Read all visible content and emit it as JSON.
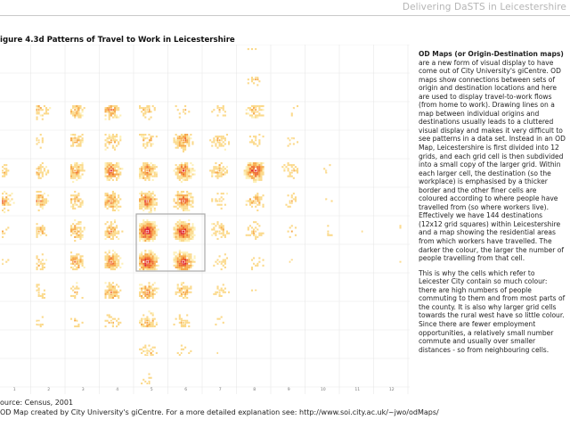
{
  "header": {
    "title": "Delivering DaSTS in Leicestershire"
  },
  "figure": {
    "title": "igure 4.3d  Patterns of Travel to Work in Leicestershire",
    "column_labels": [
      "1",
      "2",
      "3",
      "4",
      "5",
      "6",
      "7",
      "8",
      "9",
      "10",
      "11",
      "12"
    ]
  },
  "sidebar": {
    "heading": "OD Maps (or Origin-Destination maps)",
    "paragraph1_rest": " are a new form of visual display to have come out of City University's giCentre. OD maps show connections between sets of origin and destination locations and here are used to display travel-to-work flows (from home to work). Drawing lines on a map between individual origins and destinations usually leads to a cluttered visual display and makes it very difficult to see patterns in a data set. Instead in an OD Map, Leicestershire is first divided into 12 grids, and each grid cell is then subdivided into a small copy of the larger grid. Within each larger cell, the destination (so the workplace) is emphasised by a thicker border and the other finer cells are coloured according to where people have travelled from (so where workers live). Effectively we have 144 destinations (12x12 grid squares) within Leicestershire and a map showing the residential areas from which workers have travelled. The darker the colour, the larger the number of people travelling from that cell.",
    "paragraph2": "This is why the cells which refer to Leicester City contain so much colour: there are high numbers of people commuting to them and from most parts of the county. It is also why larger grid cells towards the rural west have so little colour. Since there are fewer employment opportunities, a relatively small number commute and usually over smaller distances - so from neighbouring cells."
  },
  "footer": {
    "source": "ource: Census, 2001",
    "credit": "OD Map created by City University's giCentre. For a more detailed explanation see: http://www.soi.city.ac.uk/~jwo/odMaps/"
  },
  "colors": {
    "light": "#fdf0b8",
    "pale": "#fbd98a",
    "medium": "#f7a94a",
    "strong": "#ef6a2e",
    "dark": "#e0252e",
    "grid": "#e8e8e8",
    "highlight_border": "#a9a9a9"
  }
}
